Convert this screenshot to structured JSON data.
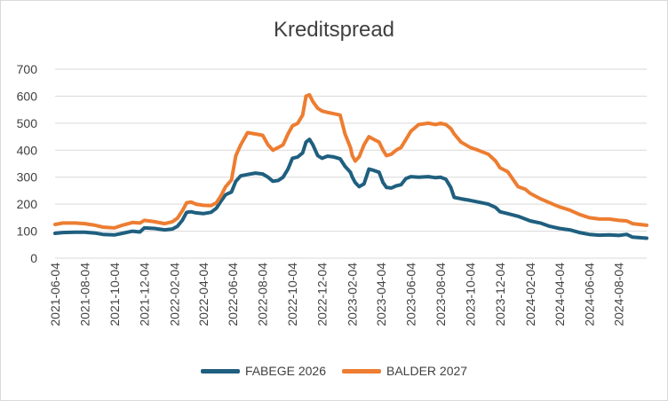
{
  "chart_data": {
    "type": "line",
    "title": "Kreditspread",
    "xlabel": "",
    "ylabel": "",
    "ylim": [
      0,
      700
    ],
    "y_ticks": [
      0,
      100,
      200,
      300,
      400,
      500,
      600,
      700
    ],
    "x_ticks": [
      "2021-06-04",
      "2021-08-04",
      "2021-10-04",
      "2021-12-04",
      "2022-02-04",
      "2022-04-04",
      "2022-06-04",
      "2022-08-04",
      "2022-10-04",
      "2022-12-04",
      "2023-02-04",
      "2023-04-04",
      "2023-06-04",
      "2023-08-04",
      "2023-10-04",
      "2023-12-04",
      "2024-02-04",
      "2024-04-04",
      "2024-06-04",
      "2024-08-04"
    ],
    "x_range": [
      "2021-06-04",
      "2024-09-30"
    ],
    "grid": true,
    "legend_position": "bottom",
    "series": [
      {
        "name": "FABEGE 2026",
        "color": "#1f5f7f",
        "points": [
          [
            "2021-06-04",
            92
          ],
          [
            "2021-06-20",
            95
          ],
          [
            "2021-07-15",
            96
          ],
          [
            "2021-08-04",
            96
          ],
          [
            "2021-08-25",
            93
          ],
          [
            "2021-09-10",
            88
          ],
          [
            "2021-10-04",
            86
          ],
          [
            "2021-10-20",
            92
          ],
          [
            "2021-11-10",
            100
          ],
          [
            "2021-11-25",
            97
          ],
          [
            "2021-12-04",
            112
          ],
          [
            "2021-12-25",
            110
          ],
          [
            "2022-01-15",
            105
          ],
          [
            "2022-01-31",
            108
          ],
          [
            "2022-02-10",
            118
          ],
          [
            "2022-02-20",
            140
          ],
          [
            "2022-03-01",
            170
          ],
          [
            "2022-03-10",
            172
          ],
          [
            "2022-03-20",
            168
          ],
          [
            "2022-04-04",
            165
          ],
          [
            "2022-04-20",
            170
          ],
          [
            "2022-05-01",
            185
          ],
          [
            "2022-05-10",
            210
          ],
          [
            "2022-05-20",
            235
          ],
          [
            "2022-06-01",
            245
          ],
          [
            "2022-06-10",
            285
          ],
          [
            "2022-06-20",
            305
          ],
          [
            "2022-07-04",
            310
          ],
          [
            "2022-07-20",
            315
          ],
          [
            "2022-08-04",
            312
          ],
          [
            "2022-08-15",
            300
          ],
          [
            "2022-08-25",
            285
          ],
          [
            "2022-09-05",
            288
          ],
          [
            "2022-09-15",
            300
          ],
          [
            "2022-09-25",
            330
          ],
          [
            "2022-10-04",
            370
          ],
          [
            "2022-10-15",
            375
          ],
          [
            "2022-10-25",
            390
          ],
          [
            "2022-11-01",
            430
          ],
          [
            "2022-11-08",
            440
          ],
          [
            "2022-11-15",
            420
          ],
          [
            "2022-11-25",
            380
          ],
          [
            "2022-12-04",
            370
          ],
          [
            "2022-12-15",
            378
          ],
          [
            "2022-12-28",
            375
          ],
          [
            "2023-01-10",
            368
          ],
          [
            "2023-01-20",
            340
          ],
          [
            "2023-01-31",
            318
          ],
          [
            "2023-02-04",
            300
          ],
          [
            "2023-02-10",
            280
          ],
          [
            "2023-02-18",
            265
          ],
          [
            "2023-02-28",
            275
          ],
          [
            "2023-03-10",
            330
          ],
          [
            "2023-03-20",
            325
          ],
          [
            "2023-03-31",
            318
          ],
          [
            "2023-04-08",
            280
          ],
          [
            "2023-04-15",
            262
          ],
          [
            "2023-04-25",
            260
          ],
          [
            "2023-05-05",
            268
          ],
          [
            "2023-05-15",
            272
          ],
          [
            "2023-05-25",
            295
          ],
          [
            "2023-06-04",
            302
          ],
          [
            "2023-06-20",
            300
          ],
          [
            "2023-07-10",
            302
          ],
          [
            "2023-07-25",
            298
          ],
          [
            "2023-08-04",
            300
          ],
          [
            "2023-08-15",
            292
          ],
          [
            "2023-08-25",
            262
          ],
          [
            "2023-09-01",
            225
          ],
          [
            "2023-09-15",
            220
          ],
          [
            "2023-10-04",
            214
          ],
          [
            "2023-10-20",
            208
          ],
          [
            "2023-11-10",
            200
          ],
          [
            "2023-11-25",
            188
          ],
          [
            "2023-12-04",
            172
          ],
          [
            "2023-12-20",
            165
          ],
          [
            "2024-01-10",
            155
          ],
          [
            "2024-01-25",
            145
          ],
          [
            "2024-02-04",
            138
          ],
          [
            "2024-02-25",
            130
          ],
          [
            "2024-03-15",
            118
          ],
          [
            "2024-04-04",
            110
          ],
          [
            "2024-04-25",
            105
          ],
          [
            "2024-05-15",
            95
          ],
          [
            "2024-06-04",
            88
          ],
          [
            "2024-06-25",
            85
          ],
          [
            "2024-07-15",
            86
          ],
          [
            "2024-08-04",
            84
          ],
          [
            "2024-08-20",
            88
          ],
          [
            "2024-09-01",
            78
          ],
          [
            "2024-09-30",
            74
          ]
        ]
      },
      {
        "name": "BALDER 2027",
        "color": "#ed7d31",
        "points": [
          [
            "2021-06-04",
            125
          ],
          [
            "2021-06-20",
            130
          ],
          [
            "2021-07-15",
            130
          ],
          [
            "2021-08-04",
            128
          ],
          [
            "2021-08-25",
            122
          ],
          [
            "2021-09-10",
            115
          ],
          [
            "2021-10-04",
            112
          ],
          [
            "2021-10-20",
            122
          ],
          [
            "2021-11-10",
            132
          ],
          [
            "2021-11-25",
            130
          ],
          [
            "2021-12-04",
            140
          ],
          [
            "2021-12-25",
            135
          ],
          [
            "2022-01-15",
            128
          ],
          [
            "2022-01-31",
            135
          ],
          [
            "2022-02-10",
            148
          ],
          [
            "2022-02-20",
            175
          ],
          [
            "2022-03-01",
            205
          ],
          [
            "2022-03-10",
            208
          ],
          [
            "2022-03-20",
            200
          ],
          [
            "2022-04-04",
            196
          ],
          [
            "2022-04-20",
            195
          ],
          [
            "2022-05-01",
            205
          ],
          [
            "2022-05-10",
            230
          ],
          [
            "2022-05-20",
            265
          ],
          [
            "2022-06-01",
            290
          ],
          [
            "2022-06-10",
            380
          ],
          [
            "2022-06-20",
            420
          ],
          [
            "2022-07-04",
            465
          ],
          [
            "2022-07-20",
            460
          ],
          [
            "2022-08-04",
            455
          ],
          [
            "2022-08-15",
            420
          ],
          [
            "2022-08-25",
            400
          ],
          [
            "2022-09-05",
            410
          ],
          [
            "2022-09-15",
            420
          ],
          [
            "2022-09-25",
            460
          ],
          [
            "2022-10-04",
            490
          ],
          [
            "2022-10-15",
            500
          ],
          [
            "2022-10-25",
            530
          ],
          [
            "2022-11-01",
            600
          ],
          [
            "2022-11-08",
            605
          ],
          [
            "2022-11-15",
            580
          ],
          [
            "2022-11-25",
            555
          ],
          [
            "2022-12-04",
            545
          ],
          [
            "2022-12-15",
            540
          ],
          [
            "2022-12-28",
            535
          ],
          [
            "2023-01-10",
            530
          ],
          [
            "2023-01-20",
            460
          ],
          [
            "2023-01-31",
            410
          ],
          [
            "2023-02-04",
            380
          ],
          [
            "2023-02-10",
            360
          ],
          [
            "2023-02-18",
            375
          ],
          [
            "2023-02-28",
            420
          ],
          [
            "2023-03-10",
            450
          ],
          [
            "2023-03-20",
            440
          ],
          [
            "2023-03-31",
            430
          ],
          [
            "2023-04-08",
            400
          ],
          [
            "2023-04-15",
            380
          ],
          [
            "2023-04-25",
            385
          ],
          [
            "2023-05-05",
            400
          ],
          [
            "2023-05-15",
            410
          ],
          [
            "2023-05-25",
            440
          ],
          [
            "2023-06-04",
            470
          ],
          [
            "2023-06-20",
            495
          ],
          [
            "2023-07-10",
            500
          ],
          [
            "2023-07-25",
            495
          ],
          [
            "2023-08-04",
            500
          ],
          [
            "2023-08-15",
            495
          ],
          [
            "2023-08-25",
            480
          ],
          [
            "2023-09-01",
            460
          ],
          [
            "2023-09-15",
            430
          ],
          [
            "2023-10-04",
            410
          ],
          [
            "2023-10-20",
            400
          ],
          [
            "2023-11-10",
            385
          ],
          [
            "2023-11-25",
            360
          ],
          [
            "2023-12-04",
            335
          ],
          [
            "2023-12-20",
            320
          ],
          [
            "2024-01-10",
            265
          ],
          [
            "2024-01-25",
            255
          ],
          [
            "2024-02-04",
            240
          ],
          [
            "2024-02-25",
            220
          ],
          [
            "2024-03-15",
            205
          ],
          [
            "2024-04-04",
            190
          ],
          [
            "2024-04-25",
            178
          ],
          [
            "2024-05-15",
            162
          ],
          [
            "2024-06-04",
            150
          ],
          [
            "2024-06-25",
            145
          ],
          [
            "2024-07-15",
            145
          ],
          [
            "2024-08-04",
            140
          ],
          [
            "2024-08-20",
            138
          ],
          [
            "2024-09-01",
            128
          ],
          [
            "2024-09-30",
            122
          ]
        ]
      }
    ]
  }
}
